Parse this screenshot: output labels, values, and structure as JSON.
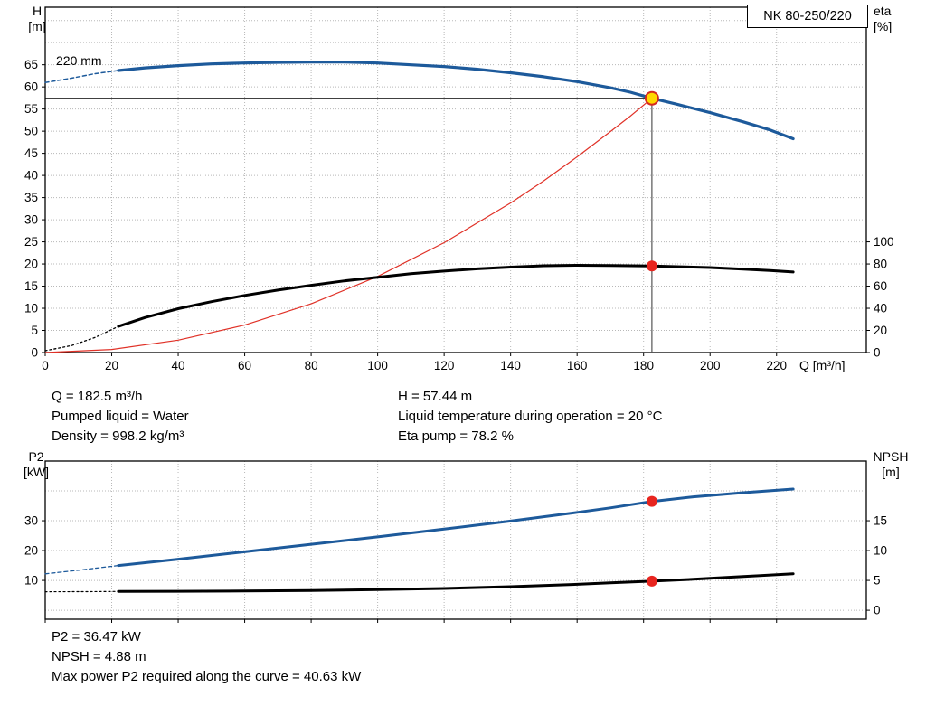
{
  "title_box": "NK 80-250/220",
  "axis_labels": {
    "h": "H",
    "h_unit": "[m]",
    "eta": "eta",
    "eta_unit": "[%]",
    "q": "Q [m³/h]",
    "p2": "P2",
    "p2_unit": "[kW]",
    "npsh": "NPSH",
    "npsh_unit": "[m]"
  },
  "impeller_label": "220 mm",
  "duty_info": {
    "left": [
      "Q = 182.5 m³/h",
      "Pumped liquid = Water",
      "Density = 998.2 kg/m³"
    ],
    "right": [
      "H = 57.44 m",
      "Liquid temperature during operation = 20 °C",
      "Eta pump = 78.2 %"
    ]
  },
  "result_info": [
    "P2 = 36.47 kW",
    "NPSH = 4.88 m",
    "Max power P2 required along the curve = 40.63 kW"
  ],
  "colors": {
    "curve_blue": "#1d5a9b",
    "curve_black": "#000000",
    "curve_red": "#e03127",
    "duty_yellow": "#ffd800",
    "grid": "#b8b8b8"
  },
  "chart_data": [
    {
      "type": "line",
      "name": "qh-eta-chart",
      "title": "NK 80-250/220",
      "xlabel": "Q [m³/h]",
      "ylabel_left": "H [m]",
      "ylabel_right": "eta [%]",
      "xlim": [
        0,
        247
      ],
      "ylim": [
        0,
        78
      ],
      "x_ticks": [
        0,
        20,
        40,
        60,
        80,
        100,
        120,
        140,
        160,
        180,
        200,
        220
      ],
      "x_tick_labels": true,
      "y_ticks": [
        0,
        5,
        10,
        15,
        20,
        25,
        30,
        35,
        40,
        45,
        50,
        55,
        60,
        65
      ],
      "y_grid": [
        5,
        10,
        15,
        20,
        25,
        30,
        35,
        40,
        45,
        50,
        55,
        60,
        65,
        70,
        75
      ],
      "right_ticks": {
        "values": [
          0,
          20,
          40,
          60,
          80,
          100
        ],
        "scale": 0.25
      },
      "ref_lines": [
        {
          "x1": 0,
          "y1": 57.44,
          "x2": 182.5,
          "y2": 57.44,
          "color": "#000000",
          "width": 1
        },
        {
          "x1": 182.5,
          "y1": 57.44,
          "x2": 182.5,
          "y2": 0,
          "color": "#555555",
          "width": 1.2
        }
      ],
      "series": [
        {
          "name": "system-curve",
          "color": "#e03127",
          "width": 1.2,
          "points": [
            [
              0,
              0
            ],
            [
              20,
              0.7
            ],
            [
              40,
              2.8
            ],
            [
              60,
              6.2
            ],
            [
              80,
              11.0
            ],
            [
              100,
              17.2
            ],
            [
              120,
              24.8
            ],
            [
              140,
              33.8
            ],
            [
              150,
              38.8
            ],
            [
              160,
              44.2
            ],
            [
              170,
              49.9
            ],
            [
              176,
              53.4
            ],
            [
              182.5,
              57.44
            ]
          ]
        },
        {
          "name": "eta-curve-ext",
          "color": "#000000",
          "width": 1.3,
          "dash": "2 3",
          "points": [
            [
              0,
              0.4
            ],
            [
              8,
              1.6
            ],
            [
              15,
              3.4
            ],
            [
              22,
              5.9
            ]
          ]
        },
        {
          "name": "eta-curve",
          "color": "#000000",
          "width": 3,
          "points": [
            [
              22,
              5.9
            ],
            [
              30,
              7.9
            ],
            [
              40,
              9.9
            ],
            [
              50,
              11.5
            ],
            [
              60,
              12.9
            ],
            [
              70,
              14.1
            ],
            [
              80,
              15.2
            ],
            [
              90,
              16.2
            ],
            [
              100,
              17.0
            ],
            [
              110,
              17.8
            ],
            [
              120,
              18.4
            ],
            [
              130,
              18.9
            ],
            [
              140,
              19.3
            ],
            [
              150,
              19.6
            ],
            [
              160,
              19.7
            ],
            [
              170,
              19.65
            ],
            [
              182.5,
              19.55
            ],
            [
              190,
              19.4
            ],
            [
              200,
              19.2
            ],
            [
              210,
              18.85
            ],
            [
              218,
              18.55
            ],
            [
              225,
              18.2
            ]
          ]
        },
        {
          "name": "h-curve-ext",
          "color": "#1d5a9b",
          "width": 1.5,
          "dash": "4 3",
          "points": [
            [
              0,
              61
            ],
            [
              8,
              62
            ],
            [
              15,
              63
            ],
            [
              22,
              63.7
            ]
          ]
        },
        {
          "name": "h-curve",
          "color": "#1d5a9b",
          "width": 3.2,
          "points": [
            [
              22,
              63.7
            ],
            [
              30,
              64.3
            ],
            [
              40,
              64.8
            ],
            [
              50,
              65.2
            ],
            [
              60,
              65.4
            ],
            [
              70,
              65.55
            ],
            [
              80,
              65.6
            ],
            [
              90,
              65.6
            ],
            [
              100,
              65.4
            ],
            [
              110,
              65.0
            ],
            [
              120,
              64.6
            ],
            [
              130,
              64.0
            ],
            [
              140,
              63.2
            ],
            [
              150,
              62.3
            ],
            [
              160,
              61.2
            ],
            [
              170,
              59.8
            ],
            [
              176,
              58.8
            ],
            [
              182.5,
              57.44
            ],
            [
              190,
              56.1
            ],
            [
              200,
              54.2
            ],
            [
              210,
              52.1
            ],
            [
              218,
              50.3
            ],
            [
              225,
              48.3
            ]
          ]
        }
      ],
      "markers": [
        {
          "x": 182.5,
          "y": 19.55,
          "r": 6,
          "fill": "#e8251f"
        },
        {
          "x": 182.5,
          "y": 57.44,
          "r": 7,
          "fill": "#ffd800",
          "stroke": "#d42a20",
          "stroke_width": 2
        }
      ]
    },
    {
      "type": "line",
      "name": "p2-npsh-chart",
      "ylabel_left": "P2 [kW]",
      "ylabel_right": "NPSH [m]",
      "xlim": [
        0,
        247
      ],
      "ylim": [
        -3,
        50
      ],
      "x_ticks": [
        0,
        20,
        40,
        60,
        80,
        100,
        120,
        140,
        160,
        180,
        200,
        220
      ],
      "x_tick_labels": false,
      "y_ticks": [
        10,
        20,
        30
      ],
      "y_grid": [
        0,
        10,
        20,
        30,
        40
      ],
      "right_ticks": {
        "values": [
          0,
          5,
          10,
          15
        ],
        "scale": 2
      },
      "ref_lines": [],
      "series": [
        {
          "name": "p2-curve-ext",
          "color": "#1d5a9b",
          "width": 1.3,
          "dash": "4 3",
          "points": [
            [
              0,
              12.2
            ],
            [
              10,
              13.4
            ],
            [
              22,
              15.0
            ]
          ]
        },
        {
          "name": "p2-curve",
          "color": "#1d5a9b",
          "width": 3,
          "points": [
            [
              22,
              15.0
            ],
            [
              40,
              17.1
            ],
            [
              60,
              19.6
            ],
            [
              80,
              22.1
            ],
            [
              100,
              24.6
            ],
            [
              120,
              27.2
            ],
            [
              140,
              29.9
            ],
            [
              160,
              32.8
            ],
            [
              170,
              34.3
            ],
            [
              182.5,
              36.47
            ],
            [
              195,
              38.0
            ],
            [
              210,
              39.4
            ],
            [
              225,
              40.6
            ]
          ]
        },
        {
          "name": "npsh-curve-ext",
          "color": "#000000",
          "width": 1.2,
          "dash": "2 3",
          "points": [
            [
              0,
              6.2
            ],
            [
              12,
              6.25
            ],
            [
              22,
              6.3
            ]
          ]
        },
        {
          "name": "npsh-curve",
          "color": "#000000",
          "width": 3,
          "points": [
            [
              22,
              6.3
            ],
            [
              40,
              6.35
            ],
            [
              60,
              6.45
            ],
            [
              80,
              6.6
            ],
            [
              100,
              6.9
            ],
            [
              120,
              7.3
            ],
            [
              140,
              7.9
            ],
            [
              160,
              8.7
            ],
            [
              170,
              9.2
            ],
            [
              182.5,
              9.76
            ],
            [
              195,
              10.4
            ],
            [
              210,
              11.3
            ],
            [
              225,
              12.2
            ]
          ]
        }
      ],
      "markers": [
        {
          "x": 182.5,
          "y": 36.47,
          "r": 6,
          "fill": "#e8251f"
        },
        {
          "x": 182.5,
          "y": 9.76,
          "r": 6,
          "fill": "#e8251f"
        }
      ]
    }
  ]
}
